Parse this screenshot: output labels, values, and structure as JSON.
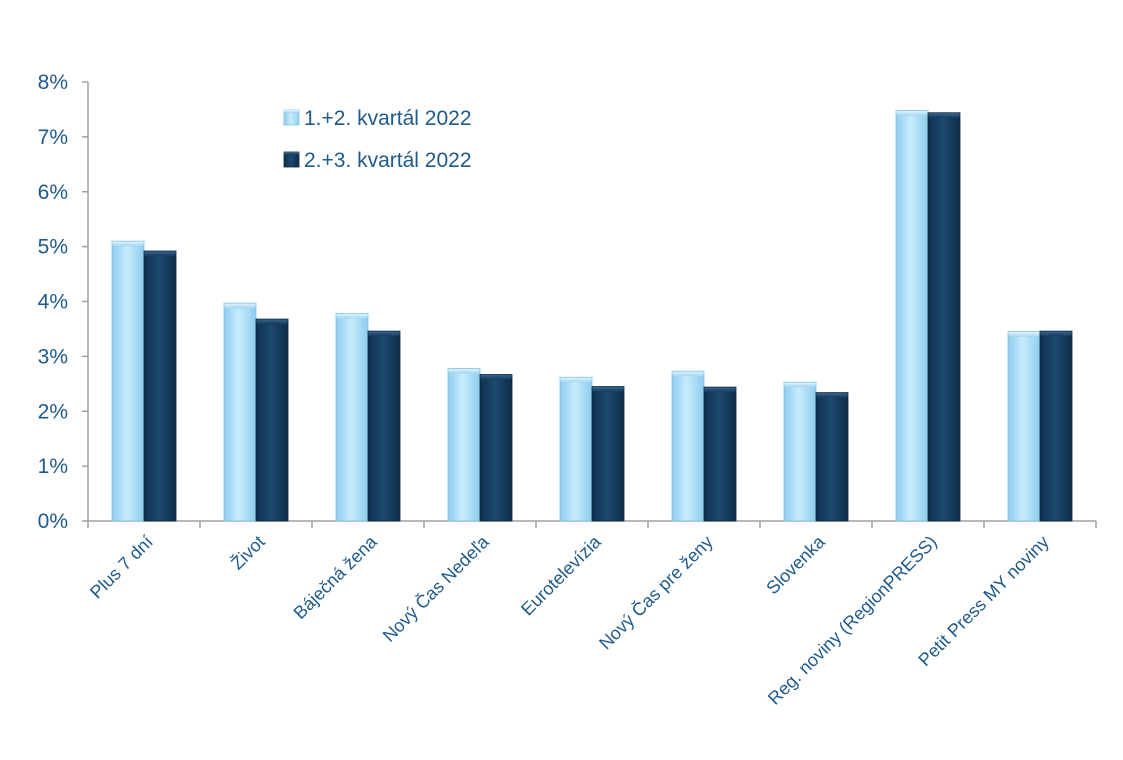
{
  "chart_data": {
    "type": "bar",
    "categories": [
      "Plus 7 dní",
      "Život",
      "Báječná žena",
      "Nový Čas Nedeľa",
      "Eurotelevízia",
      "Nový Čas pre ženy",
      "Slovenka",
      "Reg. noviny (RegionPRESS)",
      "Petit Press MY noviny"
    ],
    "series": [
      {
        "name": "1.+2. kvartál 2022",
        "values": [
          5.1,
          3.97,
          3.78,
          2.78,
          2.62,
          2.73,
          2.53,
          7.48,
          3.45
        ],
        "color": "#a8dcf5"
      },
      {
        "name": "2.+3. kvartál 2022",
        "values": [
          4.92,
          3.68,
          3.46,
          2.67,
          2.45,
          2.44,
          2.34,
          7.44,
          3.46
        ],
        "color": "#143a5c"
      }
    ],
    "ylim": [
      0,
      8
    ],
    "yticks": [
      "0%",
      "1%",
      "2%",
      "3%",
      "4%",
      "5%",
      "6%",
      "7%",
      "8%"
    ],
    "ytick_values": [
      0,
      1,
      2,
      3,
      4,
      5,
      6,
      7,
      8
    ],
    "grid": false,
    "legend_position": "top-left",
    "axis_color": "#a0a0a0",
    "text_color": "#1f5a8c"
  }
}
